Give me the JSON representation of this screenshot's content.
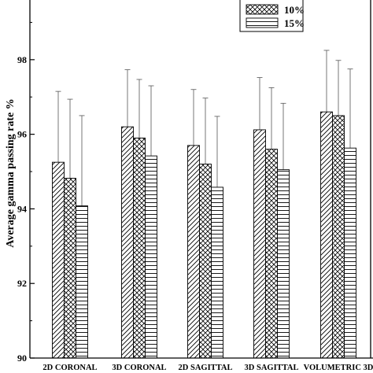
{
  "chart_data": {
    "type": "bar",
    "title": "",
    "xlabel": "",
    "ylabel": "Average gamma passing rate %",
    "ylim": [
      90,
      99.6
    ],
    "yticks": [
      90,
      92,
      94,
      96,
      98
    ],
    "grid": false,
    "legend_position": "top-right",
    "categories": [
      "2D CORONAL",
      "3D CORONAL",
      "2D SAGITTAL",
      "3D SAGITTAL",
      "VOLUMETRIC 3D"
    ],
    "series": [
      {
        "name": "",
        "pattern": "diagonal-hatch",
        "values": [
          95.25,
          96.2,
          95.7,
          96.12,
          96.6
        ],
        "error_upper": [
          1.9,
          1.53,
          1.5,
          1.4,
          1.65
        ]
      },
      {
        "name": "10%",
        "pattern": "crosshatch",
        "values": [
          94.82,
          95.9,
          95.2,
          95.6,
          96.5
        ],
        "error_upper": [
          2.12,
          1.57,
          1.77,
          1.65,
          1.48
        ]
      },
      {
        "name": "15%",
        "pattern": "horizontal-lines",
        "values": [
          94.08,
          95.42,
          94.58,
          95.05,
          95.63
        ],
        "error_upper": [
          2.42,
          1.88,
          1.9,
          1.78,
          2.12
        ]
      }
    ]
  }
}
